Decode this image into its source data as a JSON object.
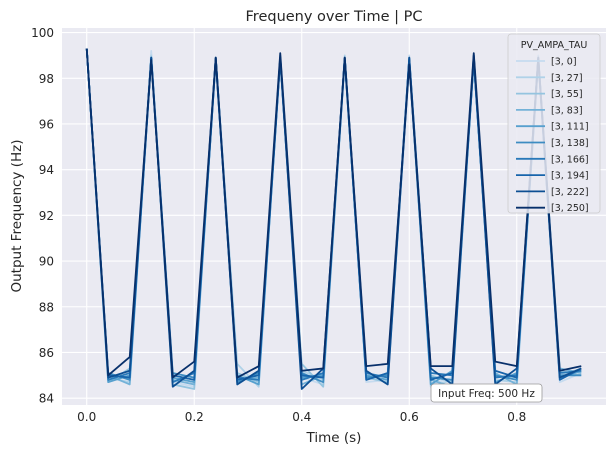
{
  "chart_data": {
    "type": "line",
    "title": "Frequeny over Time | PC",
    "xlabel": "Time (s)",
    "ylabel": "Output Frequency (Hz)",
    "xlim": [
      -0.046,
      0.966
    ],
    "ylim": [
      83.7,
      100.2
    ],
    "xticks": [
      0.0,
      0.2,
      0.4,
      0.6,
      0.8
    ],
    "xtick_labels": [
      "0.0",
      "0.2",
      "0.4",
      "0.6",
      "0.8"
    ],
    "yticks": [
      84,
      86,
      88,
      90,
      92,
      94,
      96,
      98,
      100
    ],
    "ytick_labels": [
      "84",
      "86",
      "88",
      "90",
      "92",
      "94",
      "96",
      "98",
      "100"
    ],
    "grid": true,
    "legend_title": "PV_AMPA_TAU",
    "legend_position": "top-right",
    "annotation": "Input Freq: 500 Hz",
    "annotation_position": "bottom-right",
    "x": [
      0.0,
      0.04,
      0.08,
      0.12,
      0.16,
      0.2,
      0.24,
      0.28,
      0.32,
      0.36,
      0.4,
      0.44,
      0.48,
      0.52,
      0.56,
      0.6,
      0.64,
      0.68,
      0.72,
      0.76,
      0.8,
      0.84,
      0.88,
      0.92
    ],
    "series": [
      {
        "name": "[3, 0]",
        "color": "#c6dbef",
        "values": [
          99.3,
          84.8,
          85.0,
          99.2,
          84.7,
          84.5,
          98.9,
          85.0,
          84.6,
          99.0,
          84.9,
          84.6,
          98.9,
          84.7,
          84.8,
          99.0,
          84.6,
          84.9,
          99.0,
          84.7,
          84.4,
          98.8,
          84.7,
          85.1
        ]
      },
      {
        "name": "[3, 27]",
        "color": "#b0d2e8",
        "values": [
          99.3,
          84.9,
          84.7,
          99.0,
          84.9,
          84.7,
          98.9,
          85.5,
          84.5,
          98.9,
          85.2,
          84.8,
          99.0,
          85.0,
          85.0,
          98.8,
          84.5,
          84.8,
          99.0,
          84.8,
          84.7,
          98.9,
          85.0,
          85.3
        ]
      },
      {
        "name": "[3, 55]",
        "color": "#94c4df",
        "values": [
          99.3,
          84.7,
          85.3,
          98.9,
          84.6,
          84.4,
          98.9,
          85.1,
          84.7,
          99.0,
          85.5,
          84.5,
          98.8,
          84.9,
          84.7,
          98.6,
          85.0,
          84.7,
          98.9,
          85.0,
          84.9,
          99.0,
          85.2,
          85.0
        ]
      },
      {
        "name": "[3, 83]",
        "color": "#74b2d8",
        "values": [
          99.3,
          85.0,
          84.6,
          98.9,
          84.8,
          84.6,
          98.8,
          84.8,
          84.9,
          98.9,
          84.6,
          85.0,
          98.9,
          84.8,
          85.1,
          98.9,
          84.8,
          84.5,
          98.8,
          85.1,
          84.6,
          98.9,
          85.3,
          85.1
        ]
      },
      {
        "name": "[3, 111]",
        "color": "#57a0ce",
        "values": [
          99.3,
          84.7,
          85.0,
          98.8,
          84.9,
          84.7,
          98.9,
          85.0,
          84.6,
          98.9,
          84.9,
          85.0,
          98.8,
          85.0,
          84.8,
          98.8,
          84.6,
          85.2,
          98.8,
          84.7,
          85.1,
          98.9,
          84.9,
          85.2
        ]
      },
      {
        "name": "[3, 138]",
        "color": "#3d8cc2",
        "values": [
          99.3,
          85.1,
          84.8,
          98.9,
          85.1,
          84.9,
          98.8,
          84.7,
          85.1,
          98.9,
          85.1,
          84.7,
          98.9,
          84.9,
          85.0,
          98.7,
          84.9,
          84.8,
          98.8,
          85.0,
          84.8,
          98.8,
          85.0,
          85.0
        ]
      },
      {
        "name": "[3, 166]",
        "color": "#2979b9",
        "values": [
          99.3,
          84.8,
          85.1,
          98.9,
          84.7,
          85.1,
          98.9,
          84.9,
          84.8,
          98.8,
          84.8,
          85.1,
          98.8,
          85.1,
          84.9,
          98.9,
          85.1,
          85.0,
          98.9,
          84.9,
          85.0,
          98.9,
          85.1,
          85.2
        ]
      },
      {
        "name": "[3, 194]",
        "color": "#1764ab",
        "values": [
          99.3,
          85.0,
          84.9,
          98.9,
          85.0,
          84.8,
          98.8,
          84.8,
          85.0,
          98.9,
          85.0,
          84.9,
          98.9,
          84.8,
          85.1,
          98.8,
          84.8,
          85.1,
          98.8,
          85.2,
          84.9,
          98.8,
          84.8,
          85.3
        ]
      },
      {
        "name": "[3, 222]",
        "color": "#0d4f93",
        "values": [
          99.3,
          84.9,
          85.2,
          98.9,
          84.5,
          85.2,
          98.9,
          84.6,
          85.2,
          98.9,
          84.4,
          85.3,
          98.9,
          85.2,
          84.6,
          98.9,
          85.3,
          84.6,
          99.0,
          84.6,
          85.3,
          98.9,
          84.9,
          85.3
        ]
      },
      {
        "name": "[3, 250]",
        "color": "#08306b",
        "values": [
          99.3,
          85.0,
          85.8,
          98.8,
          84.9,
          85.6,
          98.9,
          84.9,
          85.4,
          99.1,
          85.2,
          85.3,
          98.9,
          85.4,
          85.5,
          98.6,
          85.4,
          85.4,
          99.1,
          85.6,
          85.4,
          98.9,
          85.2,
          85.4
        ]
      }
    ]
  }
}
